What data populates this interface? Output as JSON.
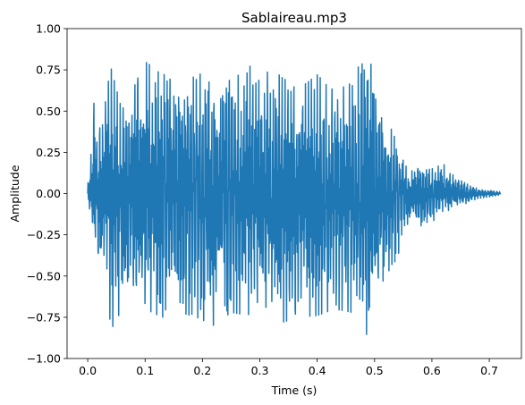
{
  "chart_data": {
    "type": "line",
    "title": "Sablaireau.mp3",
    "xlabel": "Time (s)",
    "ylabel": "Amplitude",
    "xlim": [
      -0.036,
      0.756
    ],
    "ylim": [
      -1.0,
      1.0
    ],
    "x_ticks": [
      0.0,
      0.1,
      0.2,
      0.3,
      0.4,
      0.5,
      0.6,
      0.7
    ],
    "x_tick_labels": [
      "0.0",
      "0.1",
      "0.2",
      "0.3",
      "0.4",
      "0.5",
      "0.6",
      "0.7"
    ],
    "y_ticks": [
      -1.0,
      -0.75,
      -0.5,
      -0.25,
      0.0,
      0.25,
      0.5,
      0.75,
      1.0
    ],
    "y_tick_labels": [
      "−1.00",
      "−0.75",
      "−0.50",
      "−0.25",
      "0.00",
      "0.25",
      "0.50",
      "0.75",
      "1.00"
    ],
    "grid": false,
    "series": [
      {
        "color": "#1f77b4",
        "envelope": [
          {
            "t": 0.0,
            "max": 0.05,
            "min": -0.05
          },
          {
            "t": 0.005,
            "max": 0.2,
            "min": -0.12
          },
          {
            "t": 0.01,
            "max": 0.56,
            "min": -0.3
          },
          {
            "t": 0.02,
            "max": 0.4,
            "min": -0.5
          },
          {
            "t": 0.03,
            "max": 0.75,
            "min": -0.35
          },
          {
            "t": 0.04,
            "max": 0.77,
            "min": -0.83
          },
          {
            "t": 0.06,
            "max": 0.5,
            "min": -0.7
          },
          {
            "t": 0.08,
            "max": 0.72,
            "min": -0.65
          },
          {
            "t": 0.1,
            "max": 0.8,
            "min": -0.7
          },
          {
            "t": 0.13,
            "max": 0.73,
            "min": -0.75
          },
          {
            "t": 0.16,
            "max": 0.65,
            "min": -0.72
          },
          {
            "t": 0.19,
            "max": 0.72,
            "min": -0.75
          },
          {
            "t": 0.22,
            "max": 0.74,
            "min": -0.8
          },
          {
            "t": 0.25,
            "max": 0.68,
            "min": -0.72
          },
          {
            "t": 0.28,
            "max": 0.77,
            "min": -0.74
          },
          {
            "t": 0.31,
            "max": 0.79,
            "min": -0.78
          },
          {
            "t": 0.34,
            "max": 0.7,
            "min": -0.78
          },
          {
            "t": 0.37,
            "max": 0.64,
            "min": -0.75
          },
          {
            "t": 0.4,
            "max": 0.72,
            "min": -0.74
          },
          {
            "t": 0.43,
            "max": 0.62,
            "min": -0.7
          },
          {
            "t": 0.46,
            "max": 0.67,
            "min": -0.72
          },
          {
            "t": 0.49,
            "max": 0.92,
            "min": -0.9
          },
          {
            "t": 0.51,
            "max": 0.55,
            "min": -0.6
          },
          {
            "t": 0.54,
            "max": 0.3,
            "min": -0.38
          },
          {
            "t": 0.56,
            "max": 0.12,
            "min": -0.2
          },
          {
            "t": 0.58,
            "max": 0.2,
            "min": -0.22
          },
          {
            "t": 0.6,
            "max": 0.15,
            "min": -0.18
          },
          {
            "t": 0.62,
            "max": 0.18,
            "min": -0.12
          },
          {
            "t": 0.64,
            "max": 0.1,
            "min": -0.08
          },
          {
            "t": 0.66,
            "max": 0.06,
            "min": -0.06
          },
          {
            "t": 0.68,
            "max": 0.03,
            "min": -0.03
          },
          {
            "t": 0.7,
            "max": 0.02,
            "min": -0.02
          },
          {
            "t": 0.72,
            "max": 0.01,
            "min": -0.01
          }
        ]
      }
    ]
  }
}
